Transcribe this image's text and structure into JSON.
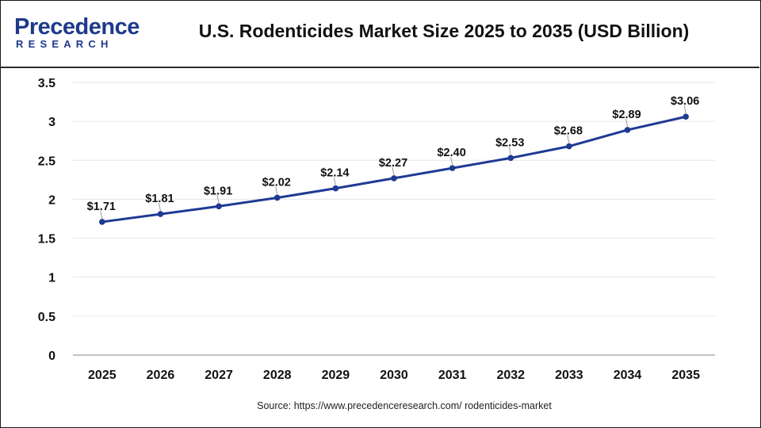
{
  "header": {
    "logo_text": "Precedence",
    "logo_sub": "RESEARCH",
    "title": "U.S. Rodenticides Market Size 2025 to 2035 (USD Billion)"
  },
  "footer": {
    "source": "Source: https://www.precedenceresearch.com/ rodenticides-market"
  },
  "colors": {
    "line": "#1f3a93",
    "brand": "#1f3a8a",
    "grid": "#e6e6e6"
  },
  "chart_data": {
    "type": "line",
    "title": "U.S. Rodenticides Market Size 2025 to 2035 (USD Billion)",
    "xlabel": "",
    "ylabel": "",
    "categories": [
      "2025",
      "2026",
      "2027",
      "2028",
      "2029",
      "2030",
      "2031",
      "2032",
      "2033",
      "2034",
      "2035"
    ],
    "series": [
      {
        "values": [
          1.71,
          1.81,
          1.91,
          2.02,
          2.14,
          2.27,
          2.4,
          2.53,
          2.68,
          2.89,
          3.06
        ],
        "labels": [
          "$1.71",
          "$1.81",
          "$1.91",
          "$2.02",
          "$2.14",
          "$2.27",
          "$2.40",
          "$2.53",
          "$2.68",
          "$2.89",
          "$3.06"
        ]
      }
    ],
    "ylim": [
      0,
      3.5
    ],
    "yticks": [
      0,
      0.5,
      1,
      1.5,
      2,
      2.5,
      3,
      3.5
    ],
    "ytick_labels": [
      "0",
      "0.5",
      "1",
      "1.5",
      "2",
      "2.5",
      "3",
      "3.5"
    ],
    "grid": true,
    "legend": "none"
  }
}
